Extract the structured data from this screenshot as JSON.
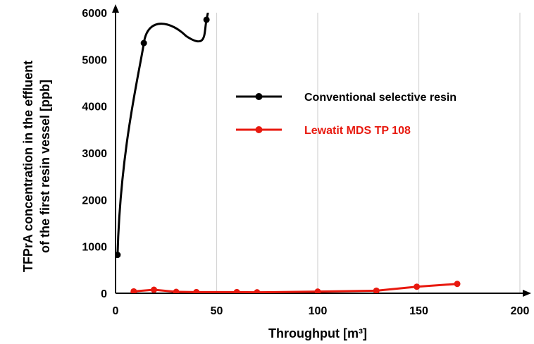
{
  "chart_data": {
    "type": "line",
    "xlabel": "Throughput [m³]",
    "ylabel_line1": "TFPrA concentration in the effluent",
    "ylabel_line2": "of  the first  resin vessel [ppb]",
    "xlim": [
      0,
      200
    ],
    "ylim": [
      0,
      6000
    ],
    "xticks": [
      0,
      50,
      100,
      150,
      200
    ],
    "yticks": [
      0,
      1000,
      2000,
      3000,
      4000,
      5000,
      6000
    ],
    "grid": "vertical",
    "legend_position": "upper-right",
    "series": [
      {
        "name": "Conventional selective resin",
        "color": "#000000",
        "smooth": true,
        "points": [
          [
            1,
            820
          ],
          [
            14,
            5350
          ],
          [
            45,
            5850
          ]
        ],
        "curve_extends_beyond_top": true
      },
      {
        "name": "Lewatit MDS TP 108",
        "color": "#e8190f",
        "smooth": false,
        "points": [
          [
            9,
            40
          ],
          [
            19,
            75
          ],
          [
            30,
            30
          ],
          [
            40,
            25
          ],
          [
            60,
            25
          ],
          [
            70,
            20
          ],
          [
            100,
            35
          ],
          [
            129,
            55
          ],
          [
            149,
            140
          ],
          [
            169,
            200
          ]
        ]
      }
    ]
  }
}
